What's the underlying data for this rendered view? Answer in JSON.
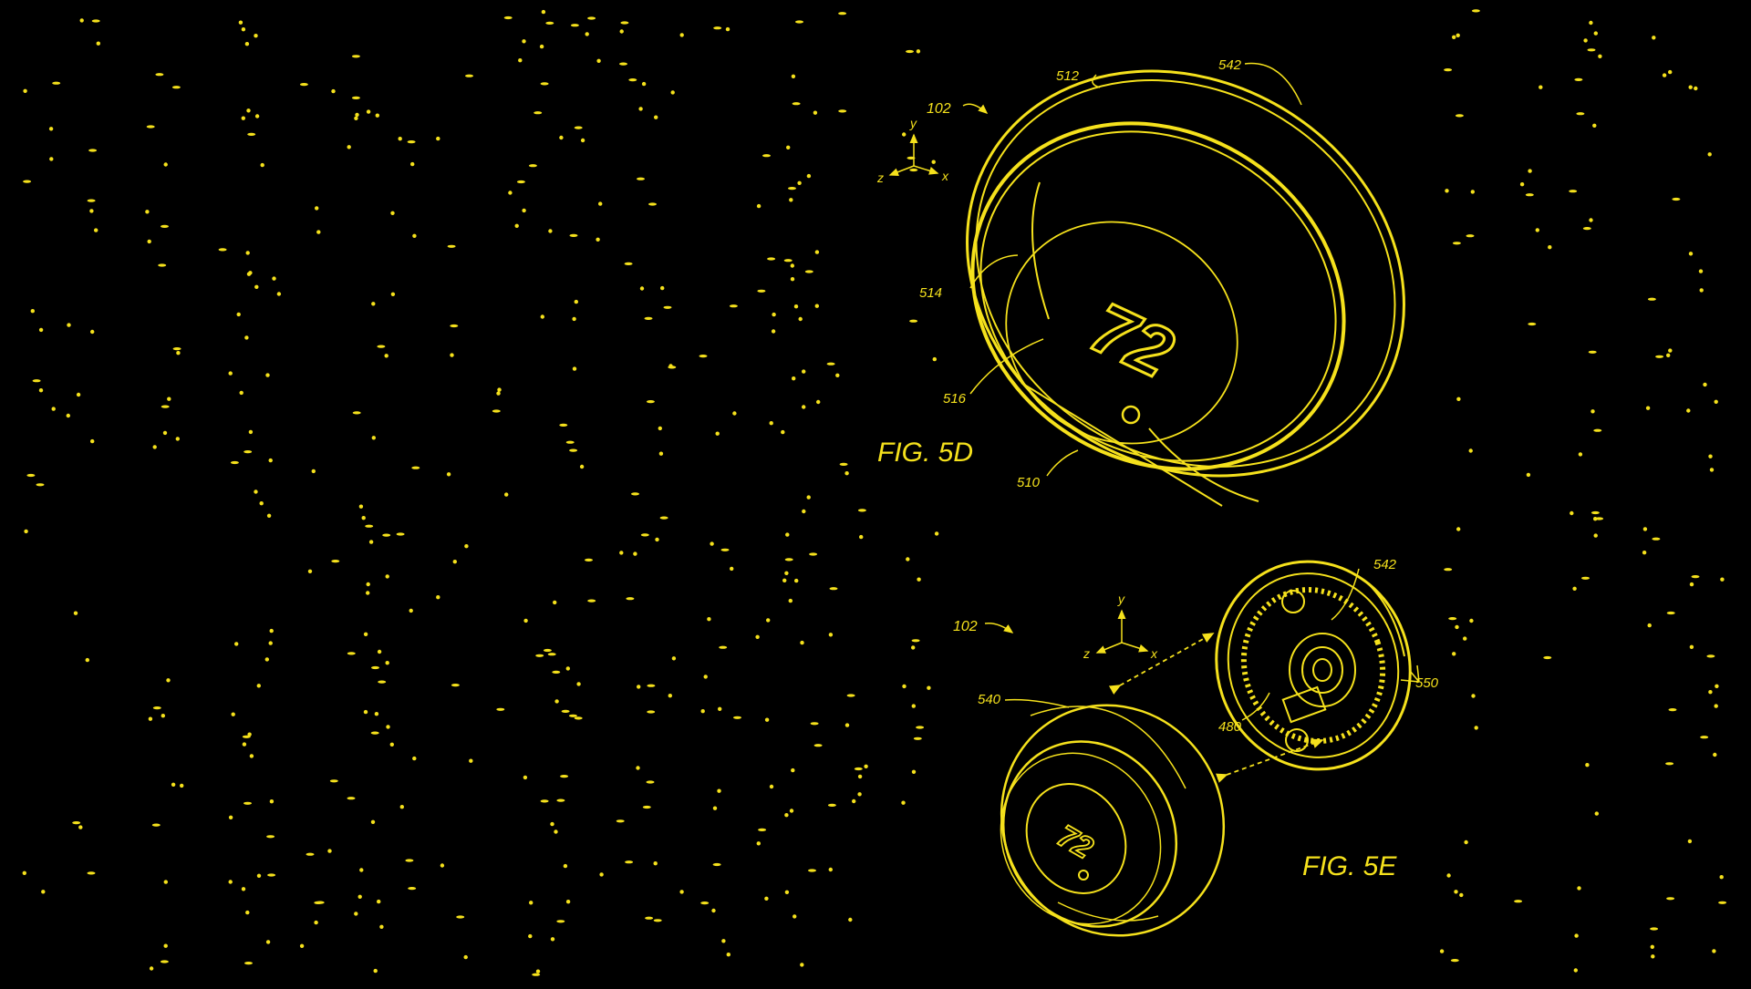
{
  "colors": {
    "background": "#000000",
    "ink": "#f5e11c"
  },
  "fig_5d": {
    "caption": "FIG. 5D",
    "display_value": "72",
    "labels": {
      "assembly": "102",
      "ring": "512",
      "housing": "542",
      "lens": "514",
      "display": "516",
      "base": "510"
    },
    "axes": {
      "y": "y",
      "x": "x",
      "z": "z"
    }
  },
  "fig_5e": {
    "caption": "FIG. 5E",
    "display_value": "72",
    "labels": {
      "assembly": "102",
      "housing": "542",
      "head": "540",
      "connector": "480",
      "terminals": "550"
    },
    "axes": {
      "y": "y",
      "x": "x",
      "z": "z"
    }
  }
}
